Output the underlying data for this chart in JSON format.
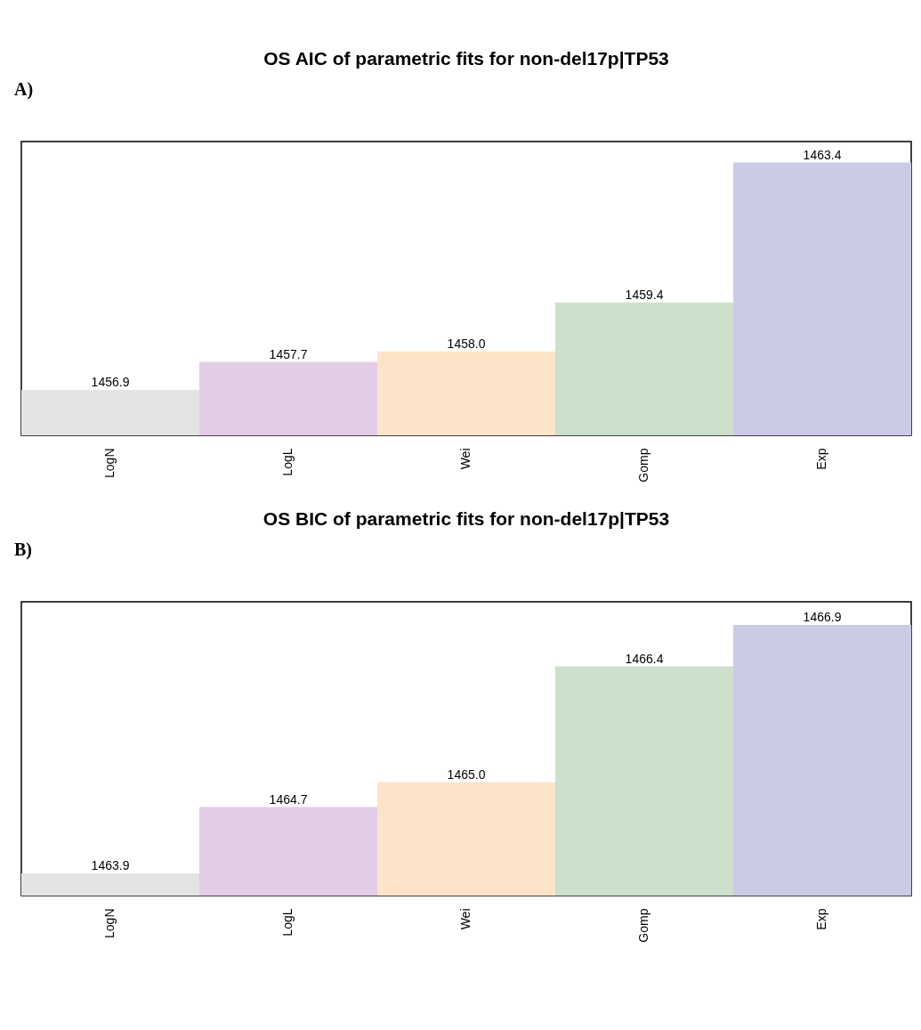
{
  "chart_data": [
    {
      "type": "bar",
      "title": "OS AIC of parametric fits for non-del17p|TP53",
      "annotations": [
        "A)"
      ],
      "categories": [
        "LogN",
        "LogL",
        "Wei",
        "Gomp",
        "Exp"
      ],
      "values": [
        1456.9,
        1457.7,
        1458.0,
        1459.4,
        1463.4
      ],
      "value_labels": [
        "1456.9",
        "1457.7",
        "1458.0",
        "1459.4",
        "1463.4"
      ],
      "colors": [
        "#e3e5e3",
        "#e3cce6",
        "#fde3c8",
        "#cde0cc",
        "#cccbe6"
      ],
      "ylim": [
        1455.6,
        1464.0
      ],
      "tick_labels": "x"
    },
    {
      "type": "bar",
      "title": "OS BIC of parametric fits for non-del17p|TP53",
      "annotations": [
        "B)"
      ],
      "categories": [
        "LogN",
        "LogL",
        "Wei",
        "Gomp",
        "Exp"
      ],
      "values": [
        1463.9,
        1464.7,
        1465.0,
        1466.4,
        1466.9
      ],
      "value_labels": [
        "1463.9",
        "1464.7",
        "1465.0",
        "1466.4",
        "1466.9"
      ],
      "colors": [
        "#e3e5e3",
        "#e3cce6",
        "#fde3c8",
        "#cde0cc",
        "#cccbe6"
      ],
      "ylim": [
        1463.63,
        1467.18
      ],
      "tick_labels": "x"
    }
  ]
}
